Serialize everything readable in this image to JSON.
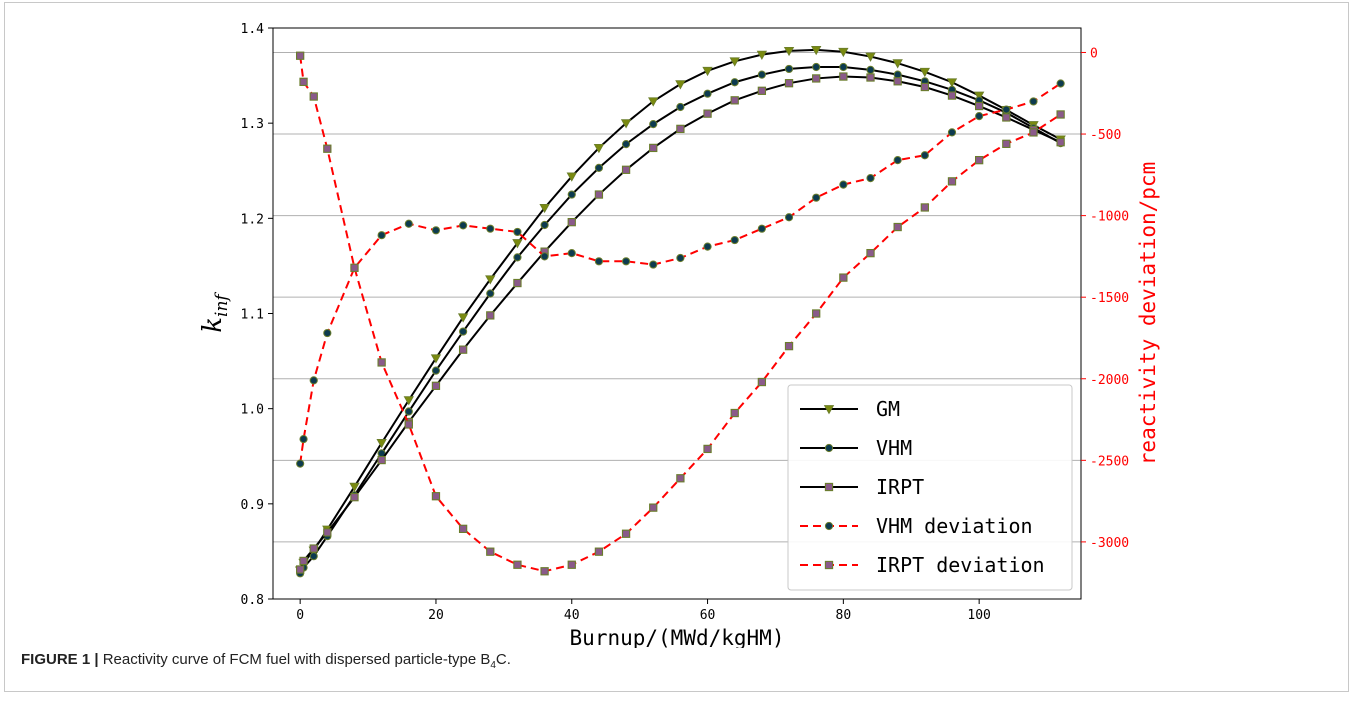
{
  "caption": {
    "label": "FIGURE 1 |",
    "text_before": " Reactivity curve of FCM fuel with dispersed particle-type B",
    "subscript": "4",
    "text_after": "C."
  },
  "chart_data": {
    "type": "line",
    "xlabel": "Burnup/(MWd/kgHM)",
    "ylabel": "k",
    "ylabel_sub": "inf",
    "y2label": "reactivity deviation/pcm",
    "xlim": [
      -4,
      115
    ],
    "ylim": [
      0.8,
      1.4
    ],
    "y2lim": [
      -3350,
      150
    ],
    "x_ticks": [
      0,
      20,
      40,
      60,
      80,
      100
    ],
    "y_ticks": [
      0.8,
      0.9,
      1.0,
      1.1,
      1.2,
      1.3,
      1.4
    ],
    "y2_ticks": [
      0,
      -500,
      -1000,
      -1500,
      -2000,
      -2500,
      -3000
    ],
    "y2_grid": true,
    "legend_position": "lower-right",
    "colors": {
      "model": "#000000",
      "deviation": "#ff0000",
      "axis2": "#ff0000",
      "grid": "#b0b0b0"
    },
    "series": [
      {
        "name": "GM",
        "axis": "left",
        "style": "solid",
        "marker": "triangle-down",
        "x": [
          0,
          0.5,
          2,
          4,
          8,
          12,
          16,
          20,
          24,
          28,
          32,
          36,
          40,
          44,
          48,
          52,
          56,
          60,
          64,
          68,
          72,
          76,
          80,
          84,
          88,
          92,
          96,
          100,
          104,
          108,
          112
        ],
        "y": [
          0.83,
          0.838,
          0.851,
          0.873,
          0.918,
          0.964,
          1.009,
          1.053,
          1.096,
          1.136,
          1.174,
          1.211,
          1.244,
          1.274,
          1.3,
          1.323,
          1.341,
          1.355,
          1.365,
          1.372,
          1.376,
          1.377,
          1.375,
          1.37,
          1.363,
          1.354,
          1.343,
          1.329,
          1.314,
          1.298,
          1.283
        ]
      },
      {
        "name": "VHM",
        "axis": "left",
        "style": "solid",
        "marker": "circle",
        "x": [
          0,
          0.5,
          2,
          4,
          8,
          12,
          16,
          20,
          24,
          28,
          32,
          36,
          40,
          44,
          48,
          52,
          56,
          60,
          64,
          68,
          72,
          76,
          80,
          84,
          88,
          92,
          96,
          100,
          104,
          108,
          112
        ],
        "y": [
          0.827,
          0.833,
          0.845,
          0.866,
          0.909,
          0.953,
          0.997,
          1.04,
          1.081,
          1.121,
          1.159,
          1.193,
          1.225,
          1.253,
          1.278,
          1.299,
          1.317,
          1.331,
          1.343,
          1.351,
          1.357,
          1.359,
          1.359,
          1.356,
          1.351,
          1.344,
          1.335,
          1.324,
          1.311,
          1.295,
          1.279
        ]
      },
      {
        "name": "IRPT",
        "axis": "left",
        "style": "solid",
        "marker": "square",
        "x": [
          0,
          0.5,
          2,
          4,
          8,
          12,
          16,
          20,
          24,
          28,
          32,
          36,
          40,
          44,
          48,
          52,
          56,
          60,
          64,
          68,
          72,
          76,
          80,
          84,
          88,
          92,
          96,
          100,
          104,
          108,
          112
        ],
        "y": [
          0.831,
          0.84,
          0.853,
          0.87,
          0.907,
          0.946,
          0.986,
          1.024,
          1.062,
          1.098,
          1.132,
          1.165,
          1.196,
          1.225,
          1.251,
          1.274,
          1.294,
          1.31,
          1.324,
          1.334,
          1.342,
          1.347,
          1.349,
          1.348,
          1.344,
          1.338,
          1.329,
          1.318,
          1.306,
          1.293,
          1.28
        ]
      },
      {
        "name": "VHM deviation",
        "axis": "right",
        "style": "dashed",
        "marker": "circle",
        "x": [
          0,
          0.5,
          2,
          4,
          8,
          12,
          16,
          20,
          24,
          28,
          32,
          36,
          40,
          44,
          48,
          52,
          56,
          60,
          64,
          68,
          72,
          76,
          80,
          84,
          88,
          92,
          96,
          100,
          104,
          108,
          112
        ],
        "y": [
          -2520,
          -2370,
          -2010,
          -1720,
          -1320,
          -1120,
          -1050,
          -1090,
          -1060,
          -1080,
          -1100,
          -1250,
          -1230,
          -1280,
          -1280,
          -1300,
          -1260,
          -1190,
          -1150,
          -1080,
          -1010,
          -890,
          -810,
          -770,
          -660,
          -630,
          -490,
          -390,
          -350,
          -300,
          -190
        ]
      },
      {
        "name": "IRPT deviation",
        "axis": "right",
        "style": "dashed",
        "marker": "square",
        "x": [
          0,
          0.5,
          2,
          4,
          8,
          12,
          16,
          20,
          24,
          28,
          32,
          36,
          40,
          44,
          48,
          52,
          56,
          60,
          64,
          68,
          72,
          76,
          80,
          84,
          88,
          92,
          96,
          100,
          104,
          108,
          112
        ],
        "y": [
          -20,
          -180,
          -270,
          -590,
          -1320,
          -1900,
          -2280,
          -2720,
          -2920,
          -3060,
          -3140,
          -3180,
          -3140,
          -3060,
          -2950,
          -2790,
          -2610,
          -2430,
          -2210,
          -2020,
          -1800,
          -1600,
          -1380,
          -1230,
          -1070,
          -950,
          -790,
          -660,
          -560,
          -490,
          -380
        ]
      }
    ]
  }
}
